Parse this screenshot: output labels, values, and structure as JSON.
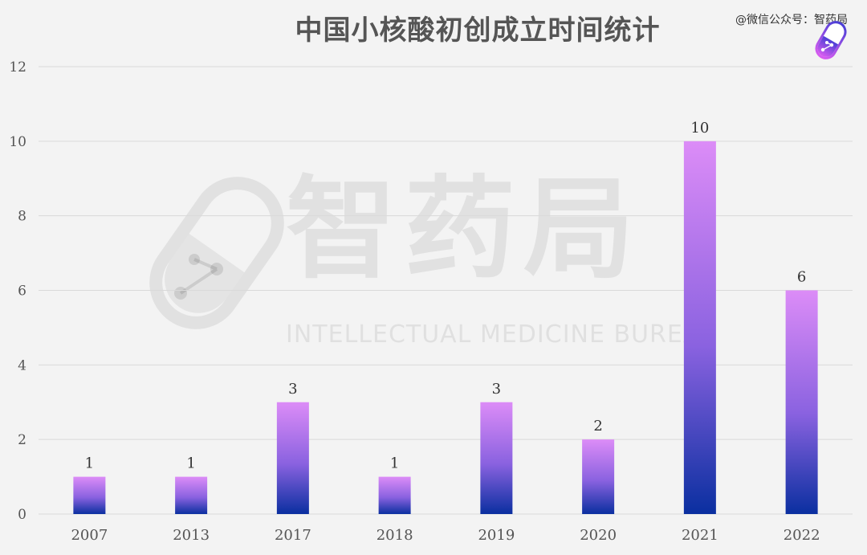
{
  "header": {
    "title": "中国小核酸初创成立时间统计",
    "source": "@微信公众号：智药局"
  },
  "watermark": {
    "cn": "智药局",
    "en": "INTELLECTUAL MEDICINE BUREAU"
  },
  "colors": {
    "bar_top": "#dc8cf7",
    "bar_mid": "#8a62e0",
    "bar_bottom": "#0a2fa0",
    "grid": "#d9d9d9",
    "axis_text": "#555555",
    "label_text": "#333333"
  },
  "chart_data": {
    "type": "bar",
    "title": "中国小核酸初创成立时间统计",
    "categories": [
      "2007",
      "2013",
      "2017",
      "2018",
      "2019",
      "2020",
      "2021",
      "2022"
    ],
    "values": [
      1,
      1,
      3,
      1,
      3,
      2,
      10,
      6
    ],
    "ylim": [
      0,
      12
    ],
    "yticks": [
      0,
      2,
      4,
      6,
      8,
      10,
      12
    ],
    "grid": true,
    "legend": "none",
    "data_labels": true
  }
}
